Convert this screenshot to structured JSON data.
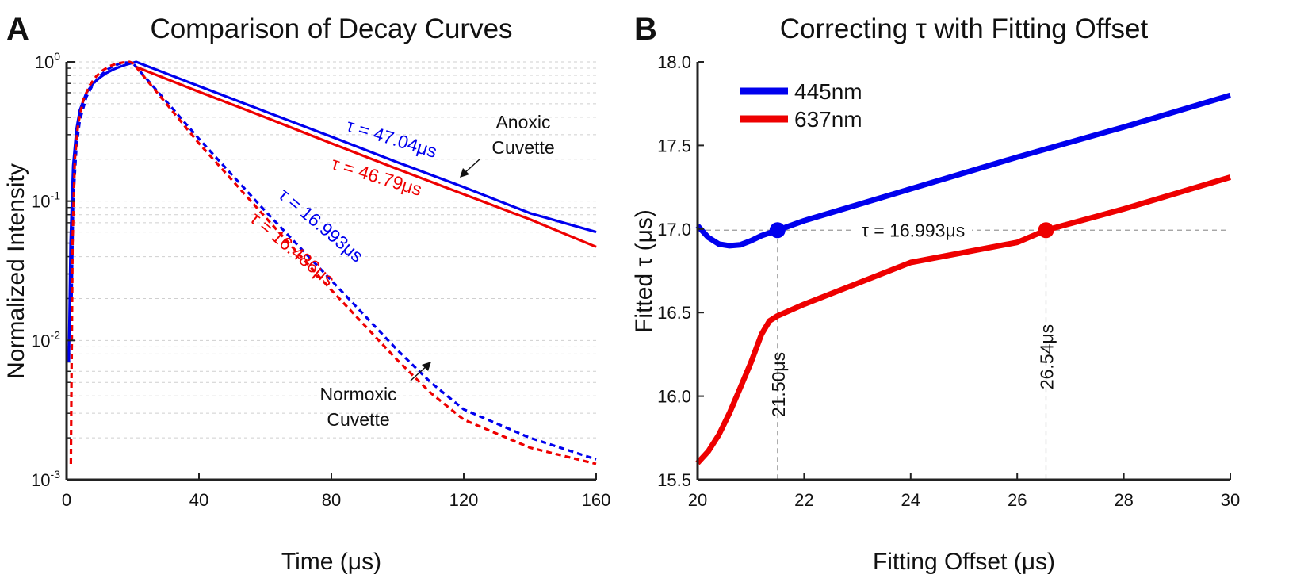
{
  "chart_data": [
    {
      "panel": "A",
      "type": "line",
      "title": "Comparison of Decay Curves",
      "xlabel": "Time (μs)",
      "ylabel": "Normalized Intensity",
      "xlim": [
        0,
        160
      ],
      "ylim": [
        0.001,
        1
      ],
      "yscale": "log",
      "xticks": [
        0,
        40,
        80,
        120,
        160
      ],
      "yticks": [
        {
          "value": 0.001,
          "base": "10",
          "exp": "-3"
        },
        {
          "value": 0.01,
          "base": "10",
          "exp": "-2"
        },
        {
          "value": 0.1,
          "base": "10",
          "exp": "-1"
        },
        {
          "value": 1,
          "base": "10",
          "exp": "0"
        }
      ],
      "grid": "y-minor-dashed",
      "series": [
        {
          "color": "#0000ee",
          "style": "solid",
          "peak_x": 21,
          "tau": 47.04,
          "x": [
            0.7,
            1.2,
            2,
            3,
            4,
            6,
            8,
            10,
            12,
            14,
            16,
            18,
            20,
            21,
            40,
            60,
            80,
            100,
            120,
            140,
            160
          ],
          "y": [
            0.007,
            0.05,
            0.18,
            0.33,
            0.45,
            0.6,
            0.7,
            0.77,
            0.83,
            0.88,
            0.92,
            0.955,
            0.985,
            1.0,
            0.67,
            0.44,
            0.29,
            0.19,
            0.126,
            0.082,
            0.06
          ]
        },
        {
          "color": "#ee0000",
          "style": "solid",
          "peak_x": 21,
          "tau": 46.79,
          "x": [
            21,
            40,
            60,
            80,
            100,
            120,
            140,
            160
          ],
          "y": [
            0.92,
            0.61,
            0.4,
            0.26,
            0.17,
            0.112,
            0.074,
            0.047
          ]
        },
        {
          "color": "#0000ee",
          "style": "dashed",
          "peak_x": 20,
          "tau": 16.993,
          "x": [
            1.5,
            2,
            3,
            4,
            6,
            8,
            10,
            12,
            14,
            16,
            18,
            20,
            40,
            60,
            80,
            100,
            110,
            120,
            140,
            160
          ],
          "y": [
            0.02,
            0.1,
            0.25,
            0.38,
            0.56,
            0.69,
            0.79,
            0.87,
            0.93,
            0.97,
            0.99,
            0.98,
            0.28,
            0.085,
            0.027,
            0.0085,
            0.005,
            0.0032,
            0.002,
            0.0014
          ]
        },
        {
          "color": "#ee0000",
          "style": "dashed",
          "peak_x": 20,
          "tau": 16.486,
          "x": [
            1.3,
            1.8,
            2.5,
            3.5,
            5,
            7,
            9,
            11,
            13,
            15,
            17,
            19,
            20,
            40,
            60,
            80,
            100,
            110,
            120,
            140,
            160
          ],
          "y": [
            0.0013,
            0.05,
            0.2,
            0.36,
            0.53,
            0.68,
            0.79,
            0.87,
            0.93,
            0.97,
            0.99,
            1.0,
            0.98,
            0.26,
            0.077,
            0.023,
            0.0072,
            0.0042,
            0.0027,
            0.0017,
            0.0013
          ]
        }
      ],
      "annotations": [
        {
          "text": "τ = 47.04μs",
          "color": "#0000ee"
        },
        {
          "text": "τ = 46.79μs",
          "color": "#ee0000"
        },
        {
          "text": "τ = 16.993μs",
          "color": "#0000ee"
        },
        {
          "text": "τ = 16.486μs",
          "color": "#ee0000"
        },
        {
          "lines": [
            "Anoxic",
            "Cuvette"
          ],
          "color": "#111111"
        },
        {
          "lines": [
            "Normoxic",
            "Cuvette"
          ],
          "color": "#111111"
        }
      ]
    },
    {
      "panel": "B",
      "type": "line",
      "title": "Correcting τ with Fitting Offset",
      "xlabel": "Fitting Offset (μs)",
      "ylabel": "Fitted τ (μs)",
      "xlim": [
        20,
        30
      ],
      "ylim": [
        15.5,
        18.0
      ],
      "xticks": [
        "20",
        "22",
        "24",
        "26",
        "28",
        "30"
      ],
      "yticks": [
        "15.5",
        "16.0",
        "16.5",
        "17.0",
        "17.5",
        "18.0"
      ],
      "legend_position": "top-left",
      "series": [
        {
          "name": "445nm",
          "color": "#0000ee",
          "x": [
            20,
            20.2,
            20.4,
            20.6,
            20.8,
            21.0,
            21.2,
            21.5,
            22,
            24,
            26,
            28,
            30
          ],
          "y": [
            17.02,
            16.95,
            16.91,
            16.9,
            16.905,
            16.93,
            16.96,
            16.993,
            17.05,
            17.24,
            17.43,
            17.61,
            17.8
          ]
        },
        {
          "name": "637nm",
          "color": "#ee0000",
          "x": [
            20,
            20.2,
            20.4,
            20.6,
            20.8,
            21.0,
            21.2,
            21.35,
            21.5,
            22,
            24,
            26,
            26.54,
            28,
            30
          ],
          "y": [
            15.6,
            15.67,
            15.77,
            15.9,
            16.05,
            16.2,
            16.37,
            16.45,
            16.48,
            16.55,
            16.8,
            16.92,
            16.993,
            17.12,
            17.31
          ]
        }
      ],
      "reference_line": {
        "y": 16.993,
        "label": "τ = 16.993μs"
      },
      "markers": [
        {
          "x": 21.5,
          "y": 16.993,
          "color": "#0000ee",
          "label": "21.50μs"
        },
        {
          "x": 26.54,
          "y": 16.993,
          "color": "#ee0000",
          "label": "26.54μs"
        }
      ]
    }
  ]
}
